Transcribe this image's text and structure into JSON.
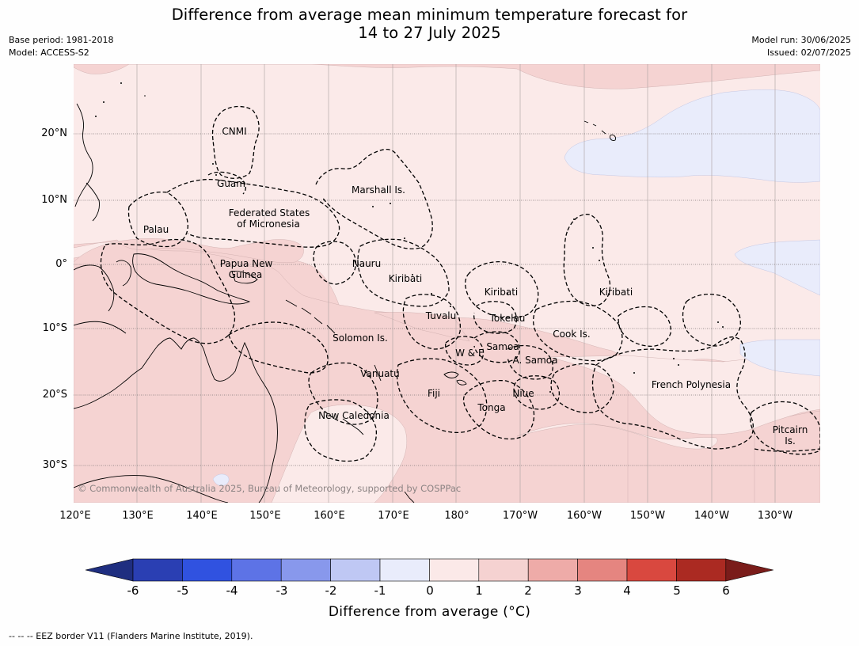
{
  "header": {
    "title_line1": "Difference from average mean minimum temperature forecast for",
    "title_line2": "14 to 27 July 2025",
    "base_period": "Base period: 1981-2018",
    "model": "Model: ACCESS-S2",
    "model_run": "Model run: 30/06/2025",
    "issued": "Issued: 02/07/2025"
  },
  "map": {
    "copyright": "© Commonwealth of Australia 2025, Bureau of Meteorology, supported by COSPPac",
    "lat_labels": [
      "20°N",
      "10°N",
      "0°",
      "10°S",
      "20°S",
      "30°S"
    ],
    "lon_labels": [
      "120°E",
      "130°E",
      "140°E",
      "150°E",
      "160°E",
      "170°E",
      "180°",
      "170°W",
      "160°W",
      "150°W",
      "140°W",
      "130°W"
    ],
    "regions": {
      "cnmi": "CNMI",
      "guam": "Guam",
      "marshall": "Marshall Is.",
      "fsm_1": "Federated States",
      "fsm_2": "of Micronesia",
      "palau": "Palau",
      "png_1": "Papua New",
      "png_2": "Guinea",
      "nauru": "Nauru",
      "kiribati_w": "Kiribati",
      "kiribati_c": "Kiribati",
      "kiribati_e": "Kiribati",
      "tuvalu": "Tuvalu",
      "tokelau": "Tokelau",
      "cook": "Cook Is.",
      "solomon": "Solomon Is.",
      "wf": "W & F",
      "samoa": "Samoa",
      "asamoa": "A. Samoa",
      "vanuatu": "Vanuatu",
      "fiji": "Fiji",
      "niue": "Niue",
      "tonga": "Tonga",
      "fp": "French Polynesia",
      "newcal": "New Caledonia",
      "pitcairn_1": "Pitcairn",
      "pitcairn_2": "Is."
    }
  },
  "colorbar": {
    "label": "Difference from average ($^\\circ$C)",
    "label_display": "Difference from average (°C)",
    "ticks": [
      "-6",
      "-5",
      "-4",
      "-3",
      "-2",
      "-1",
      "0",
      "1",
      "2",
      "3",
      "4",
      "5",
      "6"
    ],
    "colors": [
      "#1f2e80",
      "#2a3fb3",
      "#3052e0",
      "#5d73e6",
      "#8898ec",
      "#bfc8f4",
      "#e9ecfb",
      "#fbe9e8",
      "#f5d2d1",
      "#eeaba8",
      "#e58580",
      "#d9483f",
      "#ab2a22",
      "#7a1c1a"
    ]
  },
  "footer": {
    "eez_note": "-- -- -- EEZ border V11 (Flanders Marine Institute, 2019)."
  }
}
